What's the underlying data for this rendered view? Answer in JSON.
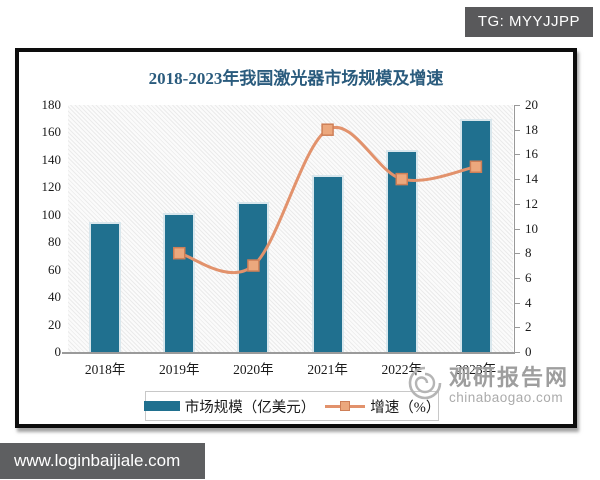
{
  "badge": {
    "text": "TG: MYYJJPP"
  },
  "chart_data": {
    "type": "bar+line",
    "title": "2018-2023年我国激光器市场规模及增速",
    "categories": [
      "2018年",
      "2019年",
      "2020年",
      "2021年",
      "2022年",
      "2023年"
    ],
    "series": [
      {
        "name": "市场规模（亿美元）",
        "type": "bar",
        "axis": "left",
        "values": [
          95,
          101,
          109,
          129,
          147,
          170
        ],
        "color": "#20708F"
      },
      {
        "name": "增速（%）",
        "type": "line",
        "axis": "right",
        "values": [
          null,
          8,
          7,
          18,
          14,
          15
        ],
        "color": "#E2926C",
        "marker_fill": "#ECA87D",
        "marker_stroke": "#CE7F57"
      }
    ],
    "left_axis": {
      "min": 0,
      "max": 180,
      "step": 20,
      "ticks": [
        "180",
        "160",
        "140",
        "120",
        "100",
        "80",
        "60",
        "40",
        "20",
        "0"
      ]
    },
    "right_axis": {
      "min": 0,
      "max": 20,
      "step": 2,
      "ticks": [
        "20",
        "18",
        "16",
        "14",
        "12",
        "10",
        "8",
        "6",
        "4",
        "2",
        "0"
      ]
    },
    "grid": false,
    "legend_position": "bottom",
    "plot_background": "diagonal-hatch"
  },
  "watermark": {
    "name": "观研报告网",
    "domain": "chinabaogao.com",
    "logo_icon": "swirl-logo-icon"
  },
  "url_bar": {
    "text": "www.loginbaijiale.com"
  }
}
